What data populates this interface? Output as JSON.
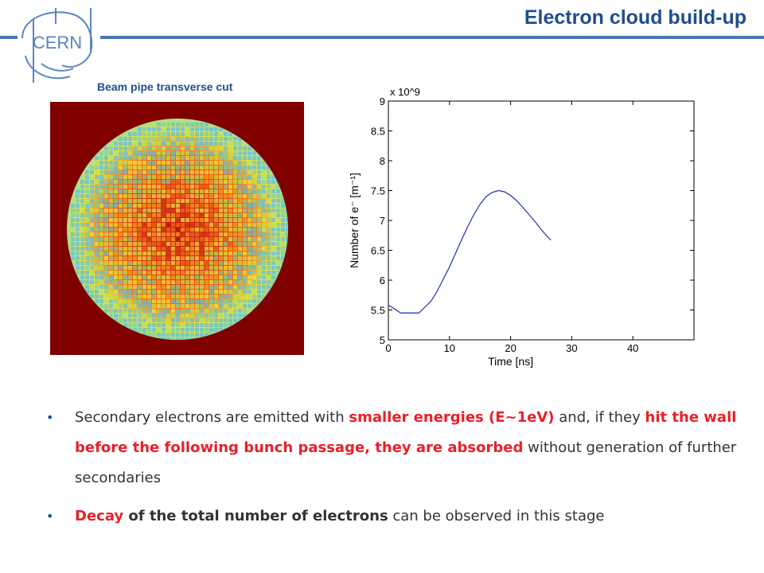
{
  "header": {
    "title": "Electron cloud build-up",
    "logo_text": "CERN"
  },
  "caption": "Beam pipe transverse cut",
  "image": {
    "name": "beam-pipe-transverse-cut-map"
  },
  "chart_data": {
    "type": "line",
    "title": "",
    "xlabel": "Time [ns]",
    "ylabel": "Number of e⁻ [m⁻¹]",
    "y_multiplier": "x 10^9",
    "xlim": [
      0,
      50
    ],
    "ylim": [
      5,
      9
    ],
    "xticks": [
      0,
      10,
      20,
      30,
      40
    ],
    "yticks": [
      5,
      5.5,
      6,
      6.5,
      7,
      7.5,
      8,
      8.5,
      9
    ],
    "grid": false,
    "series": [
      {
        "color": "#1f2fb0",
        "x": [
          0,
          1,
          2,
          3,
          4,
          5,
          6,
          7,
          8,
          9,
          10,
          11,
          12,
          13,
          14,
          15,
          16,
          17,
          18,
          19,
          20,
          21,
          22,
          23,
          24,
          25,
          26,
          26.6
        ],
        "y": [
          5.58,
          5.52,
          5.45,
          5.45,
          5.45,
          5.45,
          5.55,
          5.65,
          5.82,
          6.02,
          6.22,
          6.45,
          6.68,
          6.9,
          7.1,
          7.27,
          7.4,
          7.47,
          7.5,
          7.48,
          7.42,
          7.33,
          7.22,
          7.1,
          6.98,
          6.85,
          6.73,
          6.67
        ]
      }
    ]
  },
  "bullets": [
    {
      "segments": [
        {
          "text": "Secondary electrons are emitted with ",
          "style": "normal"
        },
        {
          "text": "smaller energies (E~1eV)",
          "style": "red-bold"
        },
        {
          "text": " and, if they ",
          "style": "normal"
        },
        {
          "text": "hit the wall before the following bunch passage, they are absorbed",
          "style": "red-bold"
        },
        {
          "text": " without generation of further secondaries",
          "style": "normal"
        }
      ]
    },
    {
      "segments": [
        {
          "text": "Decay",
          "style": "red-bold"
        },
        {
          "text": " of the total number of electrons",
          "style": "bold"
        },
        {
          "text": " can be observed in this stage",
          "style": "normal"
        }
      ]
    }
  ],
  "colors": {
    "accent": "#1f4e8c",
    "header_line": "#4a7ab5",
    "highlight": "#e8202a",
    "plot_line": "#1f2fb0"
  }
}
